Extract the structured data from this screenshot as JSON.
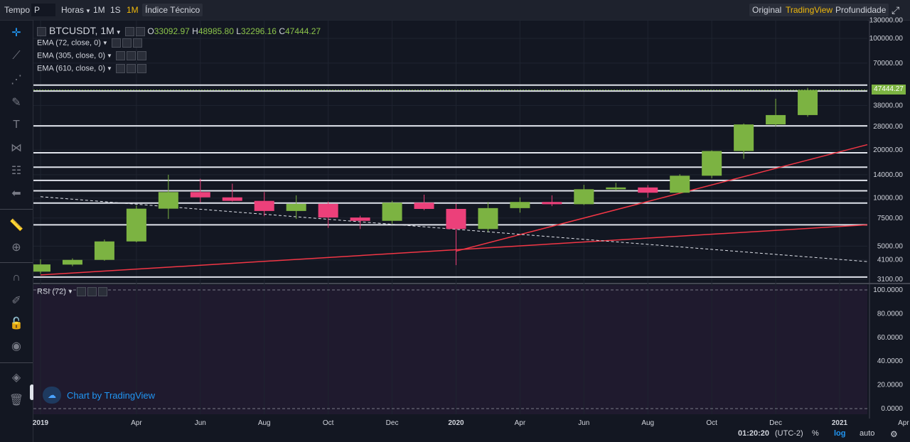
{
  "toolbar": {
    "tempo": "Tempo",
    "symbol_select": "P",
    "horas": "Horas",
    "interval_1m_lower": "1M",
    "interval_1s": "1S",
    "interval_1m_active": "1M",
    "indices": "Índice Técnico",
    "view_original": "Original",
    "view_tradingview": "TradingView",
    "view_depth": "Profundidade"
  },
  "legend": {
    "symbol": "BTCUSDT, 1M",
    "o_label": "O",
    "o_value": "33092.97",
    "h_label": "H",
    "h_value": "48985.80",
    "l_label": "L",
    "l_value": "32296.16",
    "c_label": "C",
    "c_value": "47444.27",
    "ema1": "EMA (72, close, 0)",
    "ema2": "EMA (305, close, 0)",
    "ema3": "EMA (610, close, 0)",
    "rsi": "RSI (72)"
  },
  "watermark": "Chart by TradingView",
  "last_price_tag": "47444.27",
  "bottom": {
    "time": "01:20:20",
    "tz": "(UTC-2)",
    "percent": "%",
    "log": "log",
    "auto": "auto"
  },
  "colors": {
    "up": "#7cb342",
    "down": "#ec407a",
    "level": "#e0e3eb",
    "trend": "#f23645",
    "bg": "#131722",
    "rsi_bg": "#1f1a2e"
  },
  "chart_data": {
    "type": "candlestick",
    "symbol": "BTCUSDT",
    "interval": "1M",
    "y_scale": "log",
    "y_ticks": [
      "130000.00",
      "100000.00",
      "70000.00",
      "38000.00",
      "28000.00",
      "20000.00",
      "14000.00",
      "10000.00",
      "7500.00",
      "5000.00",
      "4100.00",
      "3100.00"
    ],
    "y_tick_values": [
      130000,
      100000,
      70000,
      38000,
      28000,
      20000,
      14000,
      10000,
      7500,
      5000,
      4100,
      3100
    ],
    "x_ticks": [
      {
        "date": "2019-01",
        "label": "2019"
      },
      {
        "date": "2019-04",
        "label": "Apr"
      },
      {
        "date": "2019-06",
        "label": "Jun"
      },
      {
        "date": "2019-08",
        "label": "Aug"
      },
      {
        "date": "2019-10",
        "label": "Oct"
      },
      {
        "date": "2019-12",
        "label": "Dec"
      },
      {
        "date": "2020-02",
        "label": "2020"
      },
      {
        "date": "2020-04",
        "label": "Apr"
      },
      {
        "date": "2020-06",
        "label": "Jun"
      },
      {
        "date": "2020-08",
        "label": "Aug"
      },
      {
        "date": "2020-10",
        "label": "Oct"
      },
      {
        "date": "2020-12",
        "label": "Dec"
      },
      {
        "date": "2021-02",
        "label": "2021"
      },
      {
        "date": "2021-04",
        "label": "Apr"
      }
    ],
    "candles": [
      {
        "date": "2019-01",
        "o": 3460,
        "h": 4130,
        "l": 3350,
        "c": 3840
      },
      {
        "date": "2019-02",
        "o": 3830,
        "h": 4190,
        "l": 3740,
        "c": 4100
      },
      {
        "date": "2019-03",
        "o": 4100,
        "h": 5500,
        "l": 4050,
        "c": 5350
      },
      {
        "date": "2019-04",
        "o": 5350,
        "h": 9000,
        "l": 5280,
        "c": 8580
      },
      {
        "date": "2019-05",
        "o": 8580,
        "h": 14000,
        "l": 7400,
        "c": 10900
      },
      {
        "date": "2019-06",
        "o": 10900,
        "h": 13200,
        "l": 9400,
        "c": 10100
      },
      {
        "date": "2019-07",
        "o": 10100,
        "h": 12300,
        "l": 9500,
        "c": 9600
      },
      {
        "date": "2019-08",
        "o": 9600,
        "h": 10900,
        "l": 7700,
        "c": 8300
      },
      {
        "date": "2019-09",
        "o": 8300,
        "h": 10400,
        "l": 7400,
        "c": 9200
      },
      {
        "date": "2019-10",
        "o": 9200,
        "h": 9500,
        "l": 6500,
        "c": 7550
      },
      {
        "date": "2019-11",
        "o": 7550,
        "h": 7750,
        "l": 6400,
        "c": 7200
      },
      {
        "date": "2019-12",
        "o": 7200,
        "h": 9600,
        "l": 6900,
        "c": 9350
      },
      {
        "date": "2020-01",
        "o": 9350,
        "h": 10500,
        "l": 8400,
        "c": 8550
      },
      {
        "date": "2020-02",
        "o": 8550,
        "h": 9200,
        "l": 3800,
        "c": 6400
      },
      {
        "date": "2020-03",
        "o": 6400,
        "h": 9450,
        "l": 6150,
        "c": 8650
      },
      {
        "date": "2020-04",
        "o": 8650,
        "h": 10100,
        "l": 8100,
        "c": 9450
      },
      {
        "date": "2020-05",
        "o": 9450,
        "h": 10400,
        "l": 8900,
        "c": 9150
      },
      {
        "date": "2020-06",
        "o": 9150,
        "h": 12100,
        "l": 9050,
        "c": 11350
      },
      {
        "date": "2020-07",
        "o": 11350,
        "h": 12450,
        "l": 11150,
        "c": 11650
      },
      {
        "date": "2020-08",
        "o": 11650,
        "h": 12050,
        "l": 10050,
        "c": 10800
      },
      {
        "date": "2020-09",
        "o": 10800,
        "h": 14100,
        "l": 10700,
        "c": 13800
      },
      {
        "date": "2020-10",
        "o": 13800,
        "h": 19900,
        "l": 13300,
        "c": 19700
      },
      {
        "date": "2020-11",
        "o": 19700,
        "h": 29300,
        "l": 17600,
        "c": 28900
      },
      {
        "date": "2020-12",
        "o": 28900,
        "h": 41900,
        "l": 28100,
        "c": 33093
      },
      {
        "date": "2021-01",
        "o": 33093,
        "h": 48986,
        "l": 32296,
        "c": 47444
      }
    ],
    "horizontal_levels": [
      51000,
      46800,
      28300,
      19200,
      15600,
      12900,
      11100,
      9300,
      6800,
      3200
    ],
    "trend_lines": [
      {
        "style": "solid",
        "color": "red",
        "points": [
          {
            "date": "2019-01",
            "value": 3300
          },
          {
            "date": "2021-04",
            "value": 6800
          }
        ]
      },
      {
        "style": "solid",
        "color": "red",
        "points": [
          {
            "date": "2020-02",
            "value": 4650
          },
          {
            "date": "2021-04",
            "value": 21600
          }
        ]
      },
      {
        "style": "dashed",
        "color": "white",
        "points": [
          {
            "date": "2019-01",
            "value": 10200
          },
          {
            "date": "2021-04",
            "value": 4000
          }
        ]
      }
    ],
    "rsi_ticks": [
      "100.0000",
      "80.0000",
      "60.0000",
      "40.0000",
      "20.0000",
      "0.0000"
    ],
    "rsi_tick_values": [
      100,
      80,
      60,
      40,
      20,
      0
    ]
  }
}
